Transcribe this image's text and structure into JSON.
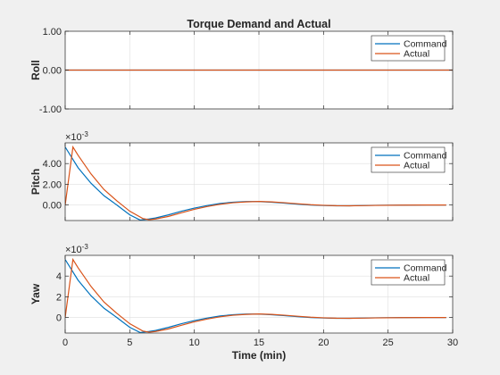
{
  "chart_data": {
    "type": "line",
    "title": "Torque Demand and Actual",
    "xlabel": "Time (min)",
    "xlim": [
      0,
      30
    ],
    "xticks": [
      0,
      5,
      10,
      15,
      20,
      25,
      30
    ],
    "xtick_labels": [
      "0",
      "5",
      "10",
      "15",
      "20",
      "25",
      "30"
    ],
    "grid": true,
    "legend_position": "top-right",
    "colors": {
      "command": "#0072bd",
      "actual": "#d95319"
    },
    "subplots": [
      {
        "name": "roll",
        "ylabel": "Roll",
        "ylim": [
          -1,
          1
        ],
        "yticks": [
          -1,
          0,
          1
        ],
        "ytick_labels": [
          "-1.00",
          "0.00",
          "1.00"
        ],
        "exponent_label": "",
        "series": [
          {
            "name": "Command",
            "x": [
              0,
              30
            ],
            "y": [
              0,
              0
            ]
          },
          {
            "name": "Actual",
            "x": [
              0,
              30
            ],
            "y": [
              0,
              0
            ]
          }
        ]
      },
      {
        "name": "pitch",
        "ylabel": "Pitch",
        "ylim": [
          -1.5,
          6
        ],
        "yticks": [
          0,
          2,
          4
        ],
        "ytick_labels": [
          "0.00",
          "2.00",
          "4.00"
        ],
        "exponent_label": "×10",
        "exponent_power": "-3",
        "series": [
          {
            "name": "Command",
            "x": [
              0,
              1,
              2,
              3,
              4,
              5,
              5.8,
              6.5,
              7,
              8,
              9,
              10,
              11,
              12,
              13,
              14,
              15,
              16,
              17,
              18,
              19,
              20,
              21,
              22,
              23,
              24,
              26,
              28,
              29.5
            ],
            "y": [
              5.6,
              3.6,
              2.1,
              0.9,
              0.0,
              -0.95,
              -1.45,
              -1.35,
              -1.25,
              -0.95,
              -0.6,
              -0.3,
              -0.05,
              0.15,
              0.27,
              0.33,
              0.33,
              0.27,
              0.18,
              0.08,
              0.0,
              -0.05,
              -0.08,
              -0.08,
              -0.05,
              -0.03,
              -0.01,
              0.0,
              0.0
            ]
          },
          {
            "name": "Actual",
            "x": [
              0,
              0.6,
              1,
              2,
              3,
              4,
              5,
              6,
              6.5,
              7,
              8,
              9,
              10,
              11,
              12,
              13,
              14,
              15,
              16,
              17,
              18,
              19,
              20,
              21,
              22,
              23,
              24,
              26,
              28,
              29.5
            ],
            "y": [
              0.0,
              5.6,
              4.8,
              3.0,
              1.5,
              0.4,
              -0.6,
              -1.3,
              -1.42,
              -1.35,
              -1.1,
              -0.75,
              -0.42,
              -0.15,
              0.07,
              0.22,
              0.3,
              0.34,
              0.3,
              0.22,
              0.12,
              0.03,
              -0.03,
              -0.07,
              -0.08,
              -0.06,
              -0.04,
              -0.01,
              0.0,
              0.0
            ]
          }
        ]
      },
      {
        "name": "yaw",
        "ylabel": "Yaw",
        "ylim": [
          -1.5,
          6
        ],
        "yticks": [
          0,
          2,
          4
        ],
        "ytick_labels": [
          "0",
          "2",
          "4"
        ],
        "exponent_label": "×10",
        "exponent_power": "-3",
        "series": [
          {
            "name": "Command",
            "x": [
              0,
              1,
              2,
              3,
              4,
              5,
              5.8,
              6.5,
              7,
              8,
              9,
              10,
              11,
              12,
              13,
              14,
              15,
              16,
              17,
              18,
              19,
              20,
              21,
              22,
              23,
              24,
              26,
              28,
              29.5
            ],
            "y": [
              5.6,
              3.6,
              2.1,
              0.9,
              0.0,
              -0.95,
              -1.45,
              -1.35,
              -1.25,
              -0.95,
              -0.6,
              -0.3,
              -0.05,
              0.15,
              0.27,
              0.33,
              0.33,
              0.27,
              0.18,
              0.08,
              0.0,
              -0.05,
              -0.08,
              -0.08,
              -0.05,
              -0.03,
              -0.01,
              0.0,
              0.0
            ]
          },
          {
            "name": "Actual",
            "x": [
              0,
              0.6,
              1,
              2,
              3,
              4,
              5,
              6,
              6.5,
              7,
              8,
              9,
              10,
              11,
              12,
              13,
              14,
              15,
              16,
              17,
              18,
              19,
              20,
              21,
              22,
              23,
              24,
              26,
              28,
              29.5
            ],
            "y": [
              0.0,
              5.6,
              4.8,
              3.0,
              1.5,
              0.4,
              -0.6,
              -1.3,
              -1.42,
              -1.35,
              -1.1,
              -0.75,
              -0.42,
              -0.15,
              0.07,
              0.22,
              0.3,
              0.34,
              0.3,
              0.22,
              0.12,
              0.03,
              -0.03,
              -0.07,
              -0.08,
              -0.06,
              -0.04,
              -0.01,
              0.0,
              0.0
            ]
          }
        ]
      }
    ]
  }
}
